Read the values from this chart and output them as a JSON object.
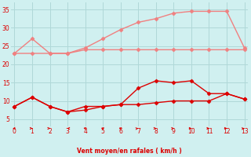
{
  "x": [
    0,
    1,
    2,
    3,
    4,
    5,
    6,
    7,
    8,
    9,
    10,
    11,
    12,
    13
  ],
  "line1": [
    23,
    27,
    23,
    23,
    24.5,
    27,
    29.5,
    31.5,
    32.5,
    34,
    34.5,
    34.5,
    34.5,
    24.5
  ],
  "line2": [
    23,
    23,
    23,
    23,
    24,
    24,
    24,
    24,
    24,
    24,
    24,
    24,
    24,
    24
  ],
  "line3": [
    8.5,
    11,
    8.5,
    7,
    7.5,
    8.5,
    9,
    13.5,
    15.5,
    15,
    15.5,
    12,
    12,
    10.5
  ],
  "line4": [
    8.5,
    11,
    8.5,
    7,
    8.5,
    8.5,
    9,
    9,
    9.5,
    10,
    10,
    10,
    12,
    10.5
  ],
  "color_light": "#f08080",
  "color_dark": "#dd0000",
  "bg_color": "#d0f0f0",
  "grid_color": "#b0d8d8",
  "xlabel": "Vent moyen/en rafales ( km/h )",
  "ylim": [
    3,
    37
  ],
  "xlim": [
    -0.2,
    13.2
  ],
  "yticks": [
    5,
    10,
    15,
    20,
    25,
    30,
    35
  ],
  "xticks": [
    0,
    1,
    2,
    3,
    4,
    5,
    6,
    7,
    8,
    9,
    10,
    11,
    12,
    13
  ]
}
